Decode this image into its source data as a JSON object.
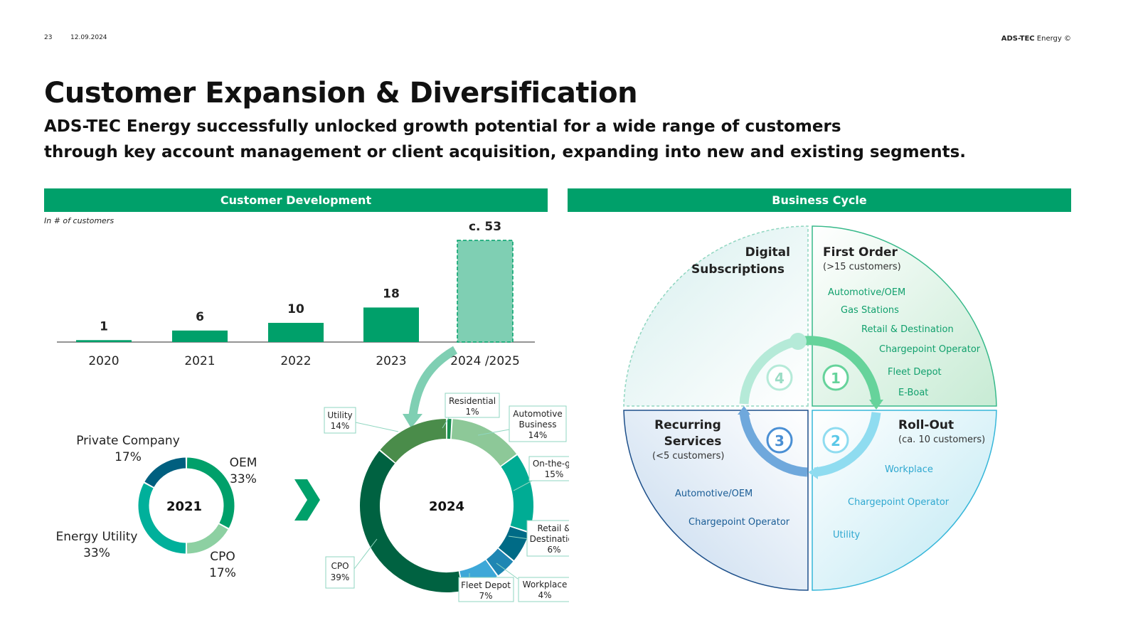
{
  "header": {
    "page_number": "23",
    "date": "12.09.2024",
    "brand_bold": "ADS-TEC",
    "brand_rest": " Energy ©"
  },
  "title": "Customer Expansion & Diversification",
  "subtitle_line1": "ADS-TEC Energy successfully unlocked growth potential for a wide range of customers",
  "subtitle_line2": "through key account management or client acquisition, expanding into new and existing segments.",
  "left_panel": {
    "header": "Customer Development",
    "note": "In # of customers"
  },
  "right_panel": {
    "header": "Business Cycle"
  },
  "colors": {
    "brand_green": "#00a06a",
    "forecast_bar": "#7fcfb3",
    "dark_green": "#006241",
    "teal": "#00b09b",
    "navy": "#005f7f",
    "light_blue": "#3ba4d3"
  },
  "chart_data": [
    {
      "type": "bar",
      "title": "Customer Development",
      "ylabel": "In # of customers",
      "categories": [
        "2020",
        "2021",
        "2022",
        "2023",
        "2024 /2025"
      ],
      "values": [
        1,
        6,
        10,
        18,
        53
      ],
      "labels": [
        "1",
        "6",
        "10",
        "18",
        "c. 53"
      ],
      "estimated": [
        false,
        false,
        false,
        false,
        true
      ],
      "ylim": [
        0,
        53
      ]
    },
    {
      "type": "pie",
      "title": "2021",
      "segments": [
        {
          "name": "OEM",
          "value": 33,
          "label": "33%",
          "color": "#00a06a"
        },
        {
          "name": "CPO",
          "value": 17,
          "label": "17%",
          "color": "#8dd0a2"
        },
        {
          "name": "Energy Utility",
          "value": 33,
          "label": "33%",
          "color": "#00b09b"
        },
        {
          "name": "Private Company",
          "value": 17,
          "label": "17%",
          "color": "#005f7f"
        }
      ]
    },
    {
      "type": "pie",
      "title": "2024",
      "segments": [
        {
          "name": "Residential",
          "value": 1,
          "label": "1%",
          "color": "#1a8f50"
        },
        {
          "name": "Automotive Business",
          "value": 14,
          "label": "14%",
          "color": "#8dc898"
        },
        {
          "name": "On-the-go",
          "value": 15,
          "label": "15%",
          "color": "#00ac94"
        },
        {
          "name": "Retail & Destination",
          "value": 6,
          "label": "6%",
          "color": "#006b86"
        },
        {
          "name": "Workplace",
          "value": 4,
          "label": "4%",
          "color": "#1f86b3"
        },
        {
          "name": "Fleet Depot",
          "value": 7,
          "label": "7%",
          "color": "#3ea8d8"
        },
        {
          "name": "CPO",
          "value": 39,
          "label": "39%",
          "color": "#006241"
        },
        {
          "name": "Utility",
          "value": 14,
          "label": "14%",
          "color": "#4a8c4a"
        }
      ]
    }
  ],
  "donut_2021_labels": {
    "private": {
      "name": "Private Company",
      "pct": "17%"
    },
    "oem": {
      "name": "OEM",
      "pct": "33%"
    },
    "utility": {
      "name": "Energy Utility",
      "pct": "33%"
    },
    "cpo": {
      "name": "CPO",
      "pct": "17%"
    }
  },
  "donut_2024_labels": {
    "residential": {
      "line1": "Residential",
      "line2": "1%"
    },
    "automotive": {
      "line1": "Automotive",
      "line2": "Business",
      "line3": "14%"
    },
    "onthego": {
      "line1": "On-the-go",
      "line2": "15%"
    },
    "retail": {
      "line1": "Retail &",
      "line2": "Destination",
      "line3": "6%"
    },
    "workplace": {
      "line1": "Workplace",
      "line2": "4%"
    },
    "fleet": {
      "line1": "Fleet Depot",
      "line2": "7%"
    },
    "cpo": {
      "line1": "CPO",
      "line2": "39%"
    },
    "utility": {
      "line1": "Utility",
      "line2": "14%"
    }
  },
  "business_cycle": {
    "digital": {
      "line1": "Digital",
      "line2": "Subscriptions",
      "step": "4"
    },
    "first_order": {
      "title": "First Order",
      "sub": "(>15 customers)",
      "step": "1",
      "items": [
        "Automotive/OEM",
        "Gas Stations",
        "Retail & Destination",
        "Chargepoint Operator",
        "Fleet Depot",
        "E-Boat"
      ]
    },
    "rollout": {
      "title": "Roll-Out",
      "sub": "(ca. 10 customers)",
      "step": "2",
      "items": [
        "Workplace",
        "Chargepoint Operator",
        "Utility"
      ]
    },
    "recurring": {
      "line1": "Recurring",
      "line2": "Services",
      "sub": "(<5 customers)",
      "step": "3",
      "items": [
        "Automotive/OEM",
        "Chargepoint Operator"
      ]
    }
  }
}
